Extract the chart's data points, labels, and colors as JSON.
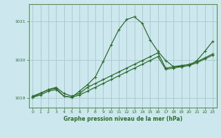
{
  "title": "Graphe pression niveau de la mer (hPa)",
  "bg_color": "#cce8ee",
  "grid_color": "#aacccc",
  "line_color": "#2d6a2d",
  "xlim": [
    -0.5,
    23.5
  ],
  "ylim": [
    1018.75,
    1021.45
  ],
  "yticks": [
    1019,
    1020,
    1021
  ],
  "xticks": [
    0,
    1,
    2,
    3,
    4,
    5,
    6,
    7,
    8,
    9,
    10,
    11,
    12,
    13,
    14,
    15,
    16,
    17,
    18,
    19,
    20,
    21,
    22,
    23
  ],
  "series1_x": [
    0,
    1,
    2,
    3,
    4,
    5,
    6,
    7,
    8,
    9,
    10,
    11,
    12,
    13,
    14,
    15,
    16,
    17,
    18,
    19,
    20,
    21,
    22,
    23
  ],
  "series1_y": [
    1019.05,
    1019.13,
    1019.22,
    1019.28,
    1019.12,
    1019.05,
    1019.12,
    1019.28,
    1019.38,
    1019.48,
    1019.58,
    1019.68,
    1019.78,
    1019.88,
    1019.98,
    1020.08,
    1020.18,
    1019.78,
    1019.82,
    1019.85,
    1019.88,
    1019.95,
    1020.05,
    1020.15
  ],
  "series2_x": [
    0,
    1,
    2,
    3,
    4,
    5,
    6,
    7,
    8,
    9,
    10,
    11,
    12,
    13,
    14,
    15,
    16,
    17,
    18,
    19,
    20,
    21,
    22,
    23
  ],
  "series2_y": [
    1019.02,
    1019.12,
    1019.22,
    1019.25,
    1019.05,
    1019.02,
    1019.18,
    1019.35,
    1019.55,
    1019.95,
    1020.38,
    1020.78,
    1021.05,
    1021.12,
    1020.95,
    1020.52,
    1020.22,
    1019.98,
    1019.82,
    1019.82,
    1019.85,
    1019.98,
    1020.22,
    1020.48
  ],
  "series3_x": [
    0,
    1,
    2,
    3,
    4,
    5,
    6,
    7,
    8,
    9,
    10,
    11,
    12,
    13,
    14,
    15,
    16,
    17,
    18,
    19,
    20,
    21,
    22,
    23
  ],
  "series3_y": [
    1019.02,
    1019.08,
    1019.18,
    1019.22,
    1019.05,
    1019.02,
    1019.08,
    1019.18,
    1019.28,
    1019.38,
    1019.48,
    1019.58,
    1019.68,
    1019.78,
    1019.88,
    1019.98,
    1020.08,
    1019.75,
    1019.78,
    1019.82,
    1019.85,
    1019.92,
    1020.02,
    1020.12
  ]
}
